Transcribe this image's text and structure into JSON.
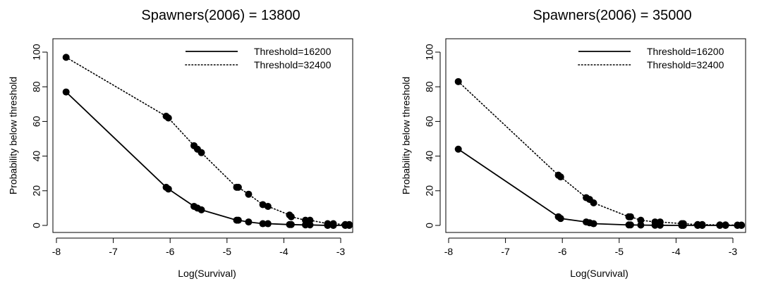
{
  "chart_data": [
    {
      "type": "line",
      "title": "Spawners(2006) = 13800",
      "xlabel": "Log(Survival)",
      "ylabel": "Probability below threshold",
      "xlim": [
        -8,
        -2.8
      ],
      "ylim": [
        0,
        100
      ],
      "xticks": [
        -8,
        -7,
        -6,
        -5,
        -4,
        -3
      ],
      "yticks": [
        0,
        20,
        40,
        60,
        80,
        100
      ],
      "legend_position": "top-right",
      "x": [
        -7.83,
        -6.07,
        -6.03,
        -5.58,
        -5.52,
        -5.45,
        -4.83,
        -4.8,
        -4.62,
        -4.37,
        -4.28,
        -3.9,
        -3.87,
        -3.62,
        -3.54,
        -3.23,
        -3.13,
        -2.92,
        -2.85
      ],
      "series": [
        {
          "name": "Threshold=16200",
          "style": "solid",
          "values": [
            77,
            22,
            21,
            11,
            10,
            9,
            3,
            3,
            2,
            1,
            1,
            0.5,
            0.5,
            0.3,
            0.3,
            0,
            0,
            0,
            0
          ]
        },
        {
          "name": "Threshold=32400",
          "style": "dotted",
          "values": [
            97,
            63,
            62,
            46,
            44,
            42,
            22,
            22,
            18,
            12,
            11,
            6,
            5,
            3,
            3,
            1,
            1,
            0.5,
            0.5
          ]
        }
      ]
    },
    {
      "type": "line",
      "title": "Spawners(2006) = 35000",
      "xlabel": "Log(Survival)",
      "ylabel": "Probability below threshold",
      "xlim": [
        -8,
        -2.8
      ],
      "ylim": [
        0,
        100
      ],
      "xticks": [
        -8,
        -7,
        -6,
        -5,
        -4,
        -3
      ],
      "yticks": [
        0,
        20,
        40,
        60,
        80,
        100
      ],
      "legend_position": "top-right",
      "x": [
        -7.83,
        -6.07,
        -6.03,
        -5.58,
        -5.52,
        -5.45,
        -4.83,
        -4.8,
        -4.62,
        -4.37,
        -4.28,
        -3.9,
        -3.87,
        -3.62,
        -3.54,
        -3.23,
        -3.13,
        -2.92,
        -2.85
      ],
      "series": [
        {
          "name": "Threshold=16200",
          "style": "solid",
          "values": [
            44,
            5,
            4,
            2,
            1.5,
            1,
            0.3,
            0.3,
            0.2,
            0.1,
            0.1,
            0,
            0,
            0,
            0,
            0,
            0,
            0,
            0
          ]
        },
        {
          "name": "Threshold=32400",
          "style": "dotted",
          "values": [
            83,
            29,
            28,
            16,
            15,
            13,
            5,
            5,
            3,
            2,
            2,
            1,
            1,
            0.5,
            0.5,
            0.3,
            0.3,
            0.2,
            0.2
          ]
        }
      ]
    }
  ]
}
